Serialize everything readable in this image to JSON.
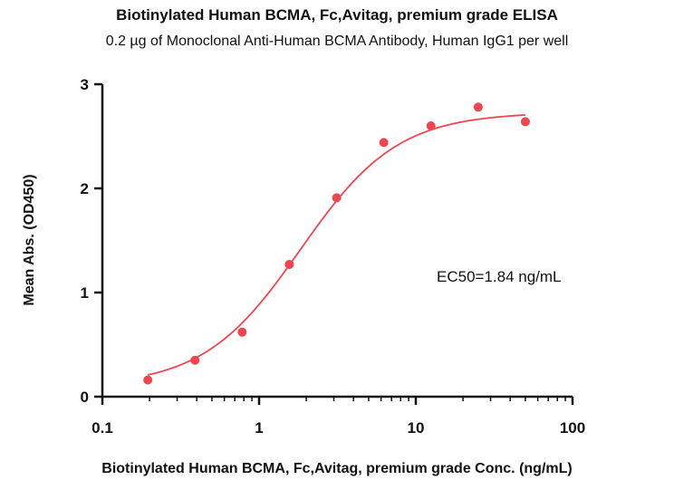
{
  "chart_data": {
    "type": "scatter",
    "title": "Biotinylated Human BCMA, Fc,Avitag, premium grade ELISA",
    "subtitle": "0.2 µg of Monoclonal Anti-Human BCMA Antibody, Human IgG1 per well",
    "xlabel": "Biotinylated Human BCMA, Fc,Avitag, premium grade Conc. (ng/mL)",
    "ylabel": "Mean Abs. (OD450)",
    "xscale": "log",
    "xlim": [
      0.1,
      100
    ],
    "ylim": [
      0,
      3
    ],
    "x_ticks": [
      "0.1",
      "1",
      "10",
      "100"
    ],
    "y_ticks": [
      "0",
      "1",
      "2",
      "3"
    ],
    "annotation": "EC50=1.84 ng/mL",
    "grid": false,
    "series": [
      {
        "color": "#f0454f",
        "x": [
          0.195,
          0.39,
          0.78,
          1.56,
          3.125,
          6.25,
          12.5,
          25,
          50
        ],
        "y": [
          0.16,
          0.35,
          0.62,
          1.27,
          1.91,
          2.44,
          2.6,
          2.78,
          2.64
        ]
      }
    ],
    "fit": {
      "type": "4PL",
      "color": "#f0454f",
      "bottom": 0.1,
      "top": 2.73,
      "ec50": 1.84,
      "hill": 1.4
    }
  }
}
